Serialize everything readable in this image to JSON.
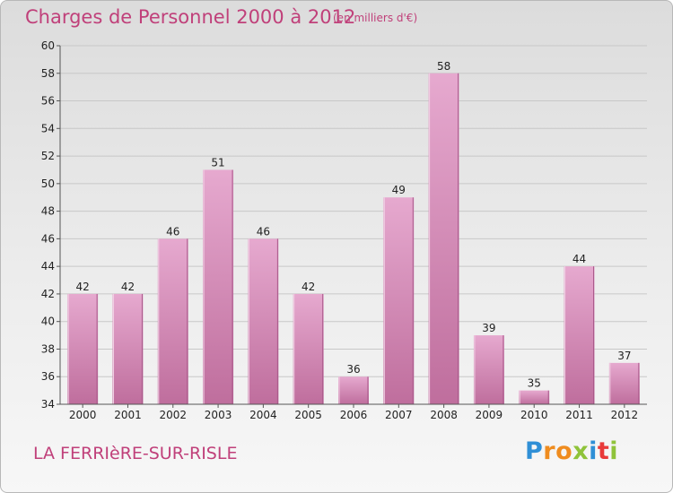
{
  "title": "Charges de Personnel 2000 à 2012",
  "subtitle": "(en milliers d'€)",
  "commune": "LA FERRIèRE-SUR-RISLE",
  "logo": {
    "letters": [
      "P",
      "r",
      "o",
      "x",
      "i",
      "t",
      "i"
    ],
    "colors": [
      "#2f8fd6",
      "#ef8c1f",
      "#ef8c1f",
      "#8fc33a",
      "#2f8fd6",
      "#e83a3a",
      "#8fc33a"
    ]
  },
  "colors": {
    "title": "#c0407a",
    "bar_light": "#e6a9cf",
    "bar_dark": "#bf6e9d",
    "grid": "#c8c8c8"
  },
  "chart_data": {
    "type": "bar",
    "title": "Charges de Personnel 2000 à 2012",
    "subtitle": "(en milliers d'€)",
    "categories": [
      "2000",
      "2001",
      "2002",
      "2003",
      "2004",
      "2005",
      "2006",
      "2007",
      "2008",
      "2009",
      "2010",
      "2011",
      "2012"
    ],
    "values": [
      42,
      42,
      46,
      51,
      46,
      42,
      36,
      49,
      58,
      39,
      35,
      44,
      37
    ],
    "ylim": [
      34,
      60
    ],
    "yticks": [
      34,
      36,
      38,
      40,
      42,
      44,
      46,
      48,
      50,
      52,
      54,
      56,
      58,
      60
    ],
    "grid": true,
    "data_labels": true
  }
}
